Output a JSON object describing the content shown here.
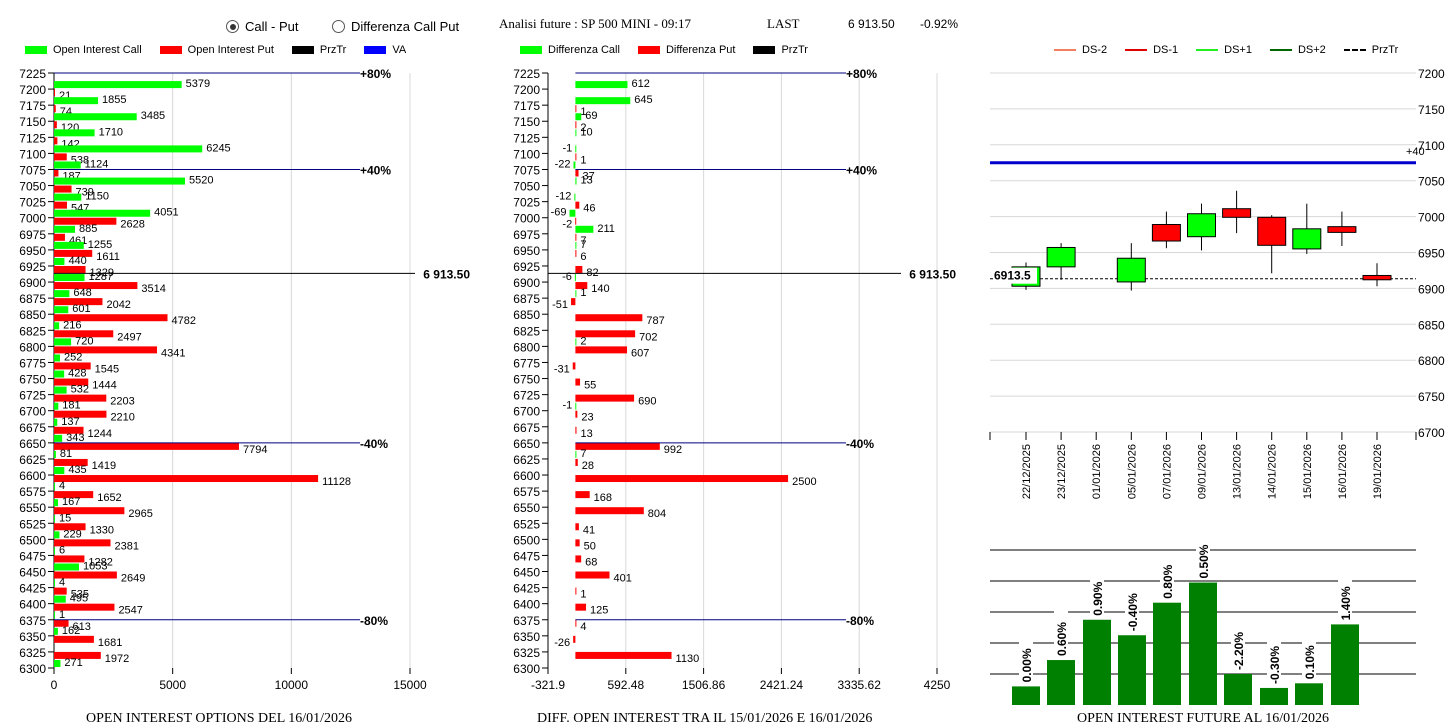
{
  "header": {
    "radio_options": [
      {
        "label": "Call - Put",
        "selected": true
      },
      {
        "label": "Differenza Call Put",
        "selected": false
      }
    ],
    "title": "Analisi future : SP 500 MINI - 09:17",
    "last_label": "LAST",
    "last_value": "6 913.50",
    "change": "-0.92%"
  },
  "legends": {
    "left": [
      {
        "label": "Open Interest Call",
        "color": "#00ff00"
      },
      {
        "label": "Open Interest Put",
        "color": "#ff0000"
      },
      {
        "label": "PrzTr",
        "color": "#000000"
      },
      {
        "label": "VA",
        "color": "#0000ff"
      }
    ],
    "middle": [
      {
        "label": "Differenza Call",
        "color": "#00ff00"
      },
      {
        "label": "Differenza Put",
        "color": "#ff0000"
      },
      {
        "label": "PrzTr",
        "color": "#000000"
      }
    ],
    "right": [
      {
        "label": "DS-2",
        "color": "#f08060",
        "style": "line"
      },
      {
        "label": "DS-1",
        "color": "#e00000",
        "style": "line"
      },
      {
        "label": "DS+1",
        "color": "#22ee22",
        "style": "line"
      },
      {
        "label": "DS+2",
        "color": "#006600",
        "style": "line"
      },
      {
        "label": "PrzTr",
        "color": "#000000",
        "style": "dash"
      }
    ]
  },
  "chart_data": [
    {
      "type": "bar",
      "orientation": "horizontal",
      "title": "OPEN INTEREST OPTIONS DEL 16/01/2026",
      "categories": [
        7225,
        7200,
        7175,
        7150,
        7125,
        7100,
        7075,
        7050,
        7025,
        7000,
        6975,
        6950,
        6925,
        6900,
        6875,
        6850,
        6825,
        6800,
        6775,
        6750,
        6725,
        6700,
        6675,
        6650,
        6625,
        6600,
        6575,
        6550,
        6525,
        6500,
        6475,
        6450,
        6425,
        6400,
        6375,
        6350,
        6325,
        6300
      ],
      "series": [
        {
          "name": "Open Interest Call",
          "color": "#00ff00",
          "values": [
            null,
            5379,
            1855,
            3485,
            1710,
            6245,
            1124,
            5520,
            1150,
            4051,
            885,
            1255,
            440,
            1287,
            648,
            601,
            216,
            720,
            252,
            428,
            532,
            181,
            137,
            343,
            81,
            435,
            4,
            167,
            15,
            229,
            6,
            1053,
            4,
            495,
            1,
            162,
            null,
            271
          ]
        },
        {
          "name": "Open Interest Put",
          "color": "#ff0000",
          "values": [
            null,
            21,
            74,
            120,
            142,
            538,
            187,
            739,
            547,
            2628,
            461,
            1611,
            1329,
            3514,
            2042,
            4782,
            2497,
            4341,
            1545,
            1444,
            2203,
            2210,
            1244,
            7794,
            1419,
            11128,
            1652,
            2965,
            1330,
            2381,
            1282,
            2649,
            535,
            2547,
            613,
            1681,
            1972,
            null
          ]
        }
      ],
      "xlim": [
        0,
        15000
      ],
      "xticks": [
        "0",
        "5000",
        "10000",
        "15000"
      ],
      "reference_lines": [
        {
          "level": 7225,
          "label": "+80%",
          "color": "#000080"
        },
        {
          "level": 7075,
          "label": "+40%",
          "color": "#000080"
        },
        {
          "level": 6650,
          "label": "-40%",
          "color": "#000080"
        },
        {
          "level": 6375,
          "label": "-80%",
          "color": "#000080"
        },
        {
          "level": 6913.5,
          "label": "6 913.50",
          "color": "#000000"
        }
      ]
    },
    {
      "type": "bar",
      "orientation": "horizontal",
      "title": "DIFF. OPEN INTEREST TRA IL 15/01/2026 E 16/01/2026",
      "categories": [
        7225,
        7200,
        7175,
        7150,
        7125,
        7100,
        7075,
        7050,
        7025,
        7000,
        6975,
        6950,
        6925,
        6900,
        6875,
        6850,
        6825,
        6800,
        6775,
        6750,
        6725,
        6700,
        6675,
        6650,
        6625,
        6600,
        6575,
        6550,
        6525,
        6500,
        6475,
        6450,
        6425,
        6400,
        6375,
        6350,
        6325,
        6300
      ],
      "series": [
        {
          "name": "Differenza Call",
          "color": "#00ff00",
          "values": [
            null,
            612,
            645,
            69,
            10,
            -1,
            -22,
            13,
            -12,
            -69,
            211,
            7,
            null,
            -6,
            1,
            null,
            null,
            2,
            null,
            null,
            null,
            -1,
            null,
            null,
            7,
            null,
            null,
            null,
            null,
            null,
            null,
            null,
            null,
            null,
            null,
            null,
            null,
            null
          ]
        },
        {
          "name": "Differenza Put",
          "color": "#ff0000",
          "values": [
            null,
            null,
            1,
            2,
            null,
            1,
            37,
            null,
            46,
            -2,
            7,
            6,
            82,
            140,
            -51,
            787,
            702,
            607,
            -31,
            55,
            690,
            23,
            13,
            992,
            28,
            2500,
            168,
            804,
            41,
            50,
            68,
            401,
            1,
            125,
            4,
            -26,
            1130,
            null
          ]
        }
      ],
      "xlim": [
        -321.9,
        4250
      ],
      "xticks": [
        "-321.9",
        "592.48",
        "1506.86",
        "2421.24",
        "3335.62",
        "4250"
      ],
      "reference_lines": [
        {
          "level": 7225,
          "label": "+80%",
          "color": "#000080"
        },
        {
          "level": 7075,
          "label": "+40%",
          "color": "#000080"
        },
        {
          "level": 6650,
          "label": "-40%",
          "color": "#000080"
        },
        {
          "level": 6375,
          "label": "-80%",
          "color": "#000080"
        },
        {
          "level": 6913.5,
          "label": "6 913.50",
          "color": "#000000"
        }
      ]
    },
    {
      "type": "candlestick",
      "title": "",
      "categories": [
        "22/12/2025",
        "23/12/2025",
        "01/01/2026",
        "05/01/2026",
        "07/01/2026",
        "09/01/2026",
        "13/01/2026",
        "14/01/2026",
        "15/01/2026",
        "16/01/2026",
        "19/01/2026"
      ],
      "ohlc": [
        {
          "open": 6903,
          "high": 6936,
          "low": 6898,
          "close": 6930
        },
        {
          "open": 6930,
          "high": 6963,
          "low": 6912,
          "close": 6957
        },
        null,
        {
          "open": 6909,
          "high": 6963,
          "low": 6897,
          "close": 6942
        },
        {
          "open": 6989,
          "high": 7007,
          "low": 6956,
          "close": 6966
        },
        {
          "open": 6972,
          "high": 7018,
          "low": 6953,
          "close": 7004
        },
        {
          "open": 7011,
          "high": 7036,
          "low": 6977,
          "close": 6999
        },
        {
          "open": 6999,
          "high": 7002,
          "low": 6921,
          "close": 6960
        },
        {
          "open": 6955,
          "high": 7018,
          "low": 6948,
          "close": 6983
        },
        {
          "open": 6986,
          "high": 7007,
          "low": 6959,
          "close": 6978
        },
        {
          "open": 6918,
          "high": 6935,
          "low": 6903,
          "close": 6912
        }
      ],
      "ylim": [
        6700,
        7200
      ],
      "yticks": [
        "7200",
        "7150",
        "7100",
        "7050",
        "7000",
        "6950",
        "6900",
        "6850",
        "6800",
        "6750",
        "6700"
      ],
      "reference_lines": [
        {
          "level": 7075,
          "label": "+40",
          "color": "#0000cc"
        },
        {
          "level": 6913.5,
          "label": "6913.5",
          "color": "#000000",
          "style": "dashed"
        }
      ]
    },
    {
      "type": "bar",
      "title": "OPEN INTEREST FUTURE AL 16/01/2026",
      "categories": [
        "22/12/2025",
        "23/12/2025",
        "05/01/2026",
        "07/01/2026",
        "09/01/2026",
        "13/01/2026",
        "14/01/2026",
        "15/01/2026",
        "16/01/2026",
        "19/01/2026"
      ],
      "values": [
        0.6,
        1.45,
        2.75,
        2.25,
        3.3,
        3.95,
        1.0,
        0.55,
        0.7,
        2.6
      ],
      "data_labels": [
        "0.00%",
        "0.60%",
        "0.90%",
        "-0.40%",
        "0.80%",
        "0.50%",
        "-2.20%",
        "-0.30%",
        "0.10%",
        "1.40%"
      ],
      "ylim": [
        0,
        5
      ],
      "color": "#008000",
      "grid": true
    }
  ]
}
